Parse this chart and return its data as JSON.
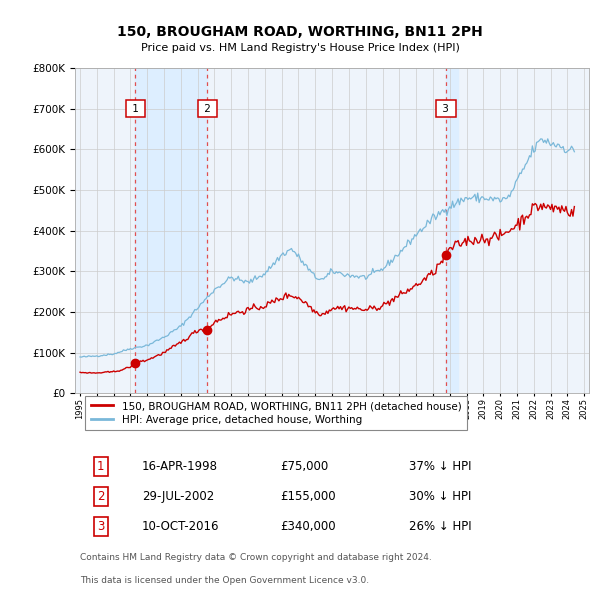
{
  "title": "150, BROUGHAM ROAD, WORTHING, BN11 2PH",
  "subtitle": "Price paid vs. HM Land Registry's House Price Index (HPI)",
  "red_label": "150, BROUGHAM ROAD, WORTHING, BN11 2PH (detached house)",
  "blue_label": "HPI: Average price, detached house, Worthing",
  "footer1": "Contains HM Land Registry data © Crown copyright and database right 2024.",
  "footer2": "This data is licensed under the Open Government Licence v3.0.",
  "transactions": [
    {
      "num": 1,
      "date": "16-APR-1998",
      "price": 75000,
      "pct": "37% ↓ HPI",
      "x_year": 1998.29,
      "price_val": 75000
    },
    {
      "num": 2,
      "date": "29-JUL-2002",
      "price": 155000,
      "pct": "30% ↓ HPI",
      "x_year": 2002.58,
      "price_val": 155000
    },
    {
      "num": 3,
      "date": "10-OCT-2016",
      "price": 340000,
      "pct": "26% ↓ HPI",
      "x_year": 2016.78,
      "price_val": 340000
    }
  ],
  "hpi_color": "#7ab8d9",
  "price_color": "#cc0000",
  "vline_color": "#e05050",
  "shade_color": "#ddeeff",
  "background_color": "#ffffff",
  "chart_bg_color": "#eef4fb",
  "grid_color": "#cccccc",
  "ylim": [
    0,
    800000
  ],
  "xlim_start": 1994.7,
  "xlim_end": 2025.3
}
